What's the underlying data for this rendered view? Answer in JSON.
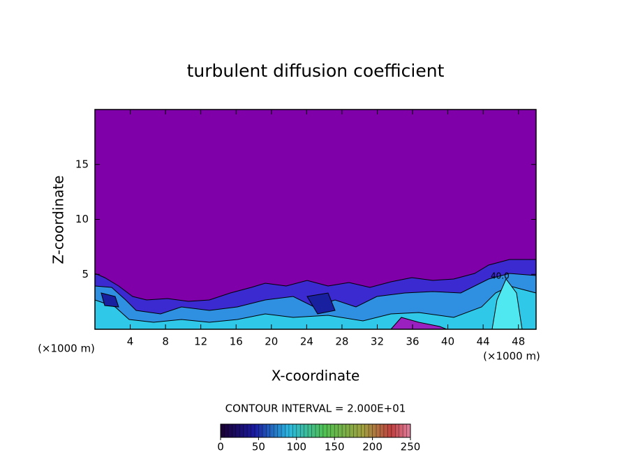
{
  "chart_data": {
    "type": "contour",
    "title": "turbulent diffusion coefficient",
    "xlabel": "X-coordinate",
    "ylabel": "Z-coordinate",
    "x_unit": "(×1000 m)",
    "xlim": [
      0,
      50
    ],
    "xticks": [
      4,
      8,
      12,
      16,
      20,
      24,
      28,
      32,
      36,
      40,
      44,
      48
    ],
    "ylim": [
      0,
      20
    ],
    "yticks": [
      5,
      10,
      15
    ],
    "contour_interval": "CONTOUR INTERVAL = 2.000E+01",
    "annotation": "40.0",
    "colorbar": {
      "lim": [
        0,
        250
      ],
      "ticks": [
        0,
        50,
        100,
        150,
        200,
        250
      ]
    },
    "background_color": "#7f00a8"
  }
}
